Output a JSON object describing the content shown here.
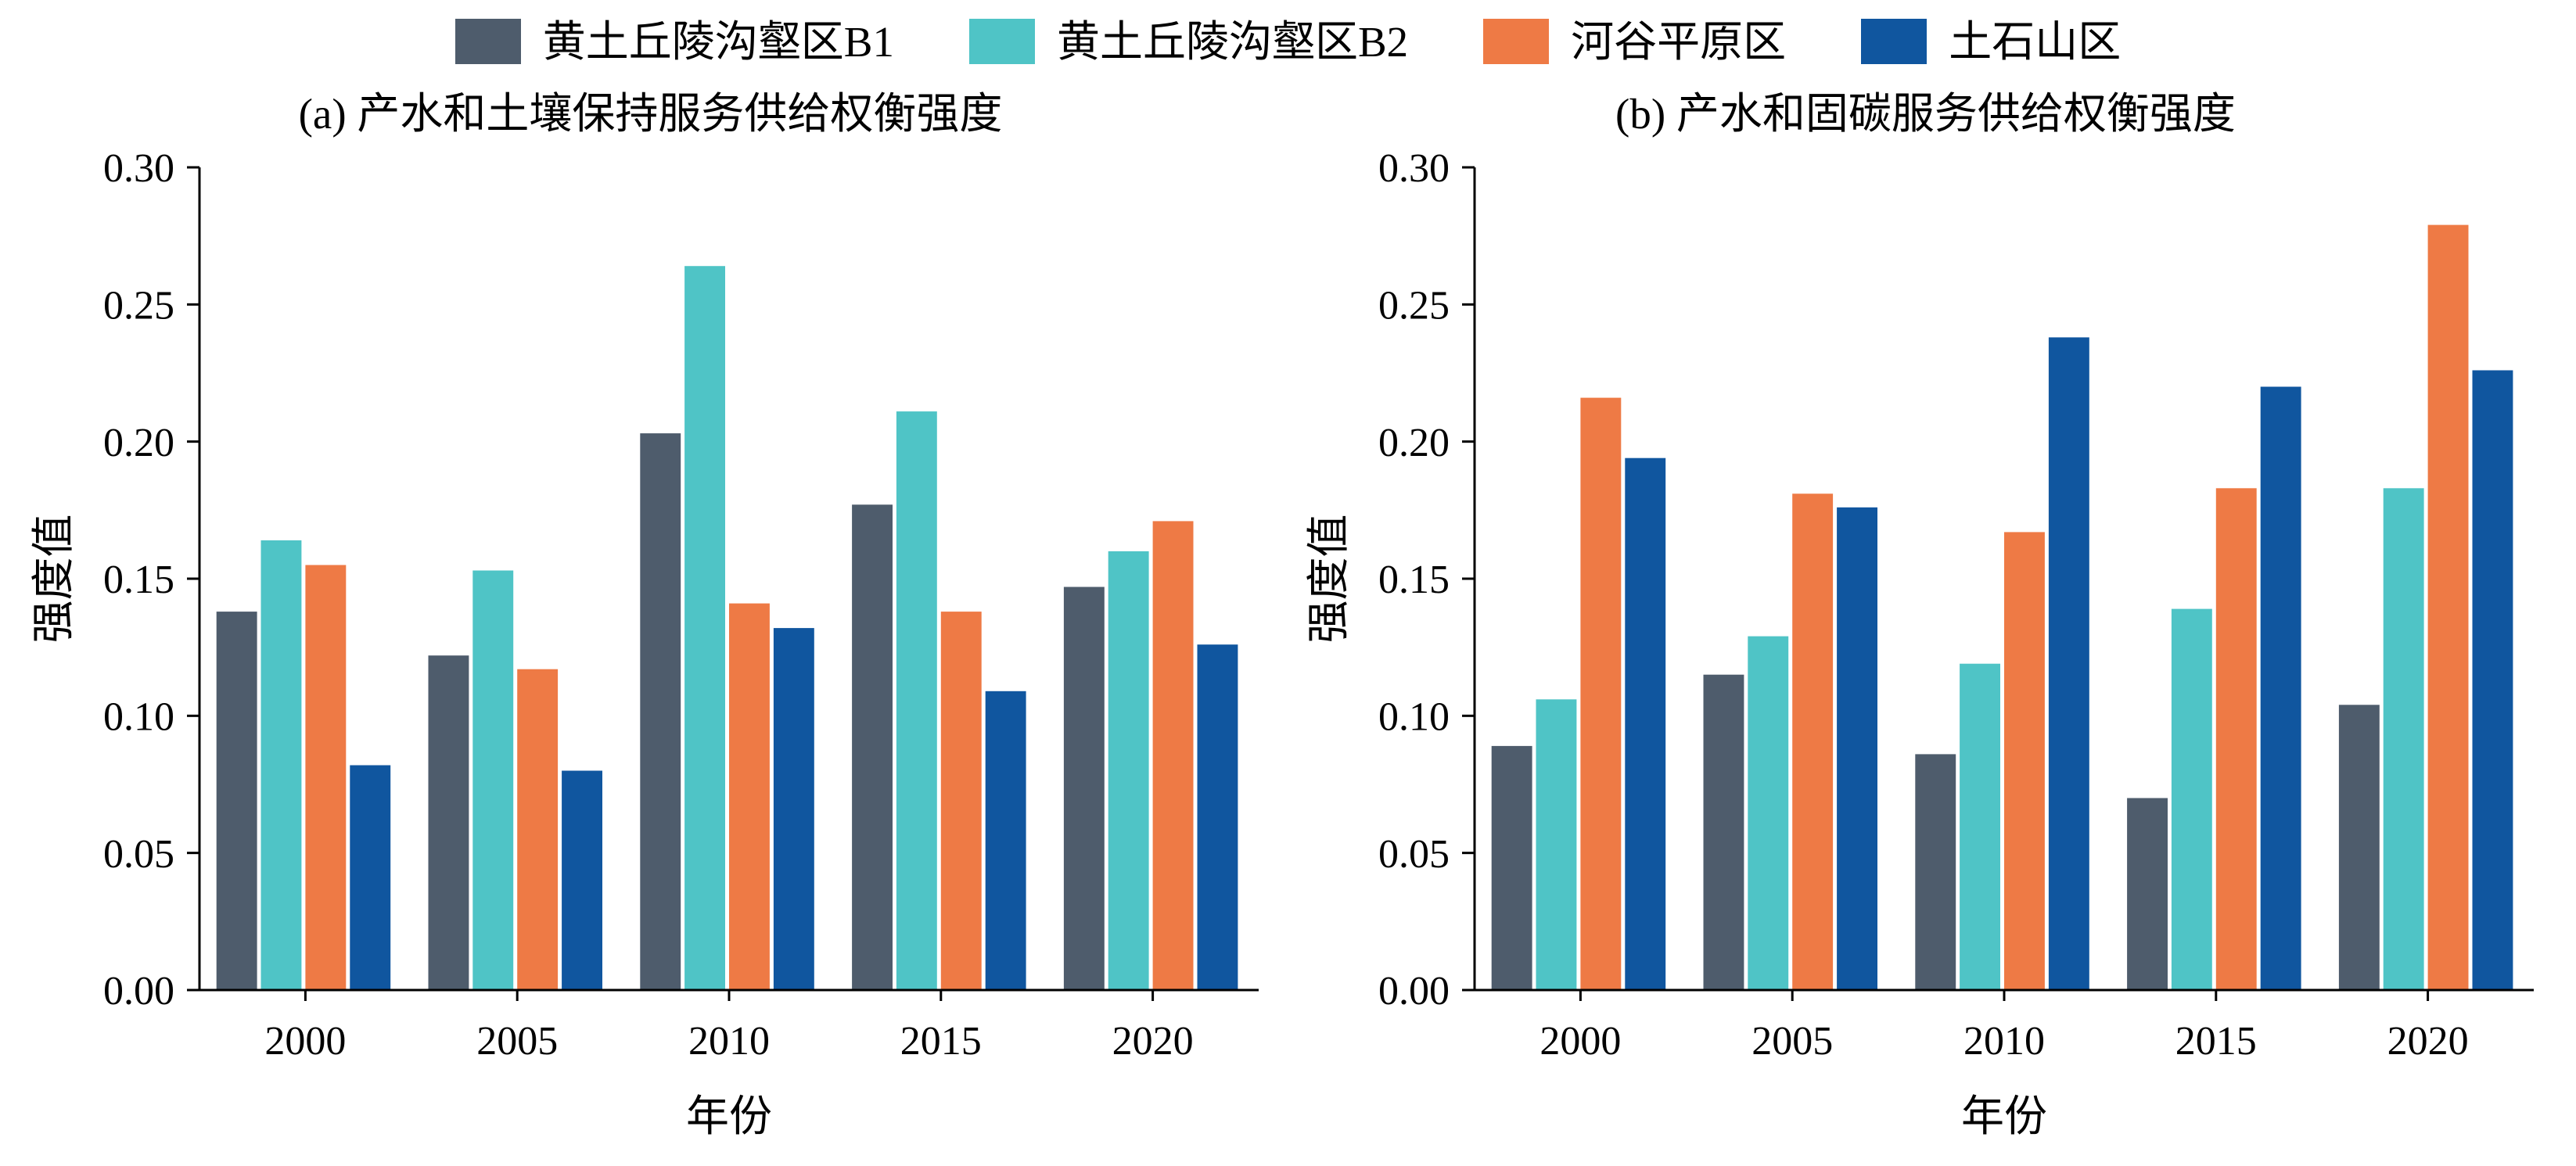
{
  "legend": {
    "position": "top",
    "items": [
      {
        "label": "黄土丘陵沟壑区B1",
        "color": "#4e5c6c"
      },
      {
        "label": "黄土丘陵沟壑区B2",
        "color": "#4fc4c6"
      },
      {
        "label": "河谷平原区",
        "color": "#ee7a45"
      },
      {
        "label": "土石山区",
        "color": "#10569f"
      }
    ]
  },
  "chart_data": [
    {
      "type": "bar",
      "panel": "a",
      "title": "(a) 产水和土壤保持服务供给权衡强度",
      "xlabel": "年份",
      "ylabel": "强度值",
      "ylim": [
        0,
        0.3
      ],
      "ytick_step": 0.05,
      "grid": false,
      "categories": [
        "2000",
        "2005",
        "2010",
        "2015",
        "2020"
      ],
      "series": [
        {
          "name": "黄土丘陵沟壑区B1",
          "color": "#4e5c6c",
          "values": [
            0.138,
            0.122,
            0.203,
            0.177,
            0.147
          ]
        },
        {
          "name": "黄土丘陵沟壑区B2",
          "color": "#4fc4c6",
          "values": [
            0.164,
            0.153,
            0.264,
            0.211,
            0.16
          ]
        },
        {
          "name": "河谷平原区",
          "color": "#ee7a45",
          "values": [
            0.155,
            0.117,
            0.141,
            0.138,
            0.171
          ]
        },
        {
          "name": "土石山区",
          "color": "#10569f",
          "values": [
            0.082,
            0.08,
            0.132,
            0.109,
            0.126
          ]
        }
      ]
    },
    {
      "type": "bar",
      "panel": "b",
      "title": "(b) 产水和固碳服务供给权衡强度",
      "xlabel": "年份",
      "ylabel": "强度值",
      "ylim": [
        0,
        0.3
      ],
      "ytick_step": 0.05,
      "grid": false,
      "categories": [
        "2000",
        "2005",
        "2010",
        "2015",
        "2020"
      ],
      "series": [
        {
          "name": "黄土丘陵沟壑区B1",
          "color": "#4e5c6c",
          "values": [
            0.089,
            0.115,
            0.086,
            0.07,
            0.104
          ]
        },
        {
          "name": "黄土丘陵沟壑区B2",
          "color": "#4fc4c6",
          "values": [
            0.106,
            0.129,
            0.119,
            0.139,
            0.183
          ]
        },
        {
          "name": "河谷平原区",
          "color": "#ee7a45",
          "values": [
            0.216,
            0.181,
            0.167,
            0.183,
            0.279
          ]
        },
        {
          "name": "土石山区",
          "color": "#10569f",
          "values": [
            0.194,
            0.176,
            0.238,
            0.22,
            0.226
          ]
        }
      ]
    }
  ]
}
